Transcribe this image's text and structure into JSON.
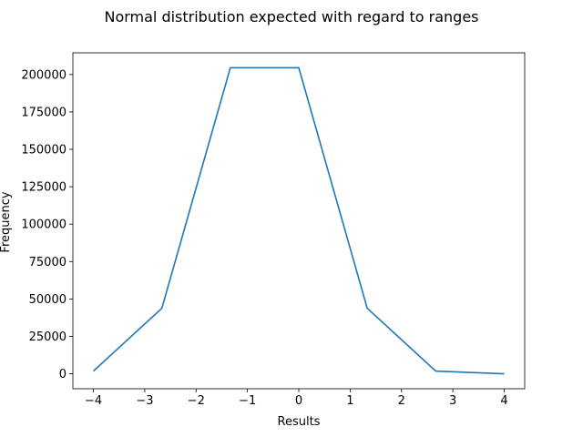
{
  "chart_data": {
    "type": "line",
    "title": "Normal distribution expected with regard to ranges",
    "xlabel": "Results",
    "ylabel": "Frequency",
    "xlim": [
      -4.4,
      4.4
    ],
    "ylim": [
      -10000,
      214500
    ],
    "grid": false,
    "x_ticks": [
      -4,
      -3,
      -2,
      -1,
      0,
      1,
      2,
      3,
      4
    ],
    "x_tick_labels": [
      "−4",
      "−3",
      "−2",
      "−1",
      "0",
      "1",
      "2",
      "3",
      "4"
    ],
    "y_ticks": [
      0,
      25000,
      50000,
      75000,
      100000,
      125000,
      150000,
      175000,
      200000
    ],
    "y_tick_labels": [
      "0",
      "25000",
      "50000",
      "75000",
      "100000",
      "125000",
      "150000",
      "175000",
      "200000"
    ],
    "series": [
      {
        "color": "#1f77b4",
        "x": [
          -4,
          -2.667,
          -1.333,
          0,
          1.333,
          2.667,
          4
        ],
        "y": [
          1800,
          43800,
          204500,
          204500,
          43800,
          1800,
          0
        ]
      }
    ]
  }
}
